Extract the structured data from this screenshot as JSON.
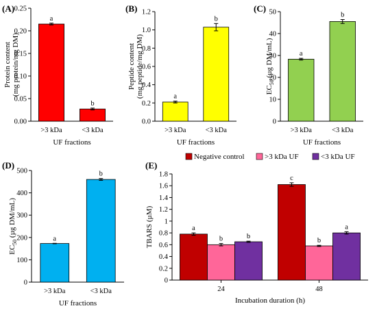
{
  "colors": {
    "red": "#ff0000",
    "yellow": "#ffff00",
    "green": "#92d050",
    "blue": "#00b0f0",
    "dark_red": "#c00000",
    "pink": "#ff6699",
    "purple": "#7030a0",
    "axis": "#000000"
  },
  "chart_data": [
    {
      "panel": "(A)",
      "type": "bar",
      "categories": [
        ">3 kDa",
        "<3 kDa"
      ],
      "values": [
        0.215,
        0.027
      ],
      "errors": [
        0.002,
        0.002
      ],
      "labels": [
        "a",
        "b"
      ],
      "ylabel_lines": [
        "Protein content",
        "(mg protein/mg DM)"
      ],
      "xlabel": "UF fractions",
      "ylim": [
        0,
        0.25
      ],
      "yticks": [
        0,
        0.05,
        0.1,
        0.15,
        0.2,
        0.25
      ],
      "ytick_labels": [
        "0.00",
        "0.05",
        "0.10",
        "0.15",
        "0.20",
        "0.25"
      ],
      "color": "#ff0000",
      "grid": false
    },
    {
      "panel": "(B)",
      "type": "bar",
      "categories": [
        ">3 kDa",
        "<3 kDa"
      ],
      "values": [
        0.21,
        1.03
      ],
      "errors": [
        0.01,
        0.04
      ],
      "labels": [
        "a",
        "b"
      ],
      "ylabel_lines": [
        "Peptide content",
        "(mg peptide/mg DM)"
      ],
      "xlabel": "UF fractions",
      "ylim": [
        0,
        1.2
      ],
      "yticks": [
        0,
        0.2,
        0.4,
        0.6,
        0.8,
        1.0,
        1.2
      ],
      "ytick_labels": [
        "0.0",
        "0.2",
        "0.4",
        "0.6",
        "0.8",
        "1.0",
        "1.2"
      ],
      "color": "#ffff00",
      "grid": false
    },
    {
      "panel": "(C)",
      "type": "bar",
      "categories": [
        ">3 kDa",
        "<3 kDa"
      ],
      "values": [
        28.3,
        45.5
      ],
      "errors": [
        0.4,
        0.9
      ],
      "labels": [
        "a",
        "b"
      ],
      "ylabel": "EC50 (µg DM/mL)",
      "ylabel_main": "EC",
      "ylabel_sub": "50",
      "ylabel_rest": " (µg DM/mL)",
      "xlabel": "UF fractions",
      "ylim": [
        0,
        50
      ],
      "yticks": [
        0,
        10,
        20,
        30,
        40,
        50
      ],
      "ytick_labels": [
        "0",
        "10",
        "20",
        "30",
        "40",
        "50"
      ],
      "color": "#92d050",
      "grid": false
    },
    {
      "panel": "(D)",
      "type": "bar",
      "categories": [
        ">3 kDa",
        "<3 kDa"
      ],
      "values": [
        173,
        460
      ],
      "errors": [
        1,
        4
      ],
      "labels": [
        "a",
        "b"
      ],
      "ylabel": "EC50 (µg DM/mL)",
      "ylabel_main": "EC",
      "ylabel_sub": "50",
      "ylabel_rest": " (µg DM/mL)",
      "xlabel": "UF fractions",
      "ylim": [
        0,
        500
      ],
      "yticks": [
        0,
        100,
        200,
        300,
        400,
        500
      ],
      "ytick_labels": [
        "0",
        "100",
        "200",
        "300",
        "400",
        "500"
      ],
      "color": "#00b0f0",
      "grid": false
    },
    {
      "panel": "(E)",
      "type": "bar",
      "categories": [
        "24",
        "48"
      ],
      "series": [
        {
          "name": "Negative control",
          "values": [
            0.78,
            1.62
          ],
          "errors": [
            0.02,
            0.03
          ],
          "labels": [
            "a",
            "c"
          ],
          "color": "#c00000"
        },
        {
          "name": ">3 kDa UF",
          "values": [
            0.6,
            0.58
          ],
          "errors": [
            0.02,
            0.01
          ],
          "labels": [
            "b",
            "b"
          ],
          "color": "#ff6699"
        },
        {
          "name": "<3 kDa UF",
          "values": [
            0.65,
            0.8
          ],
          "errors": [
            0.01,
            0.02
          ],
          "labels": [
            "b",
            "a"
          ],
          "color": "#7030a0"
        }
      ],
      "ylabel": "TBARS (µM)",
      "xlabel": "Incubation duration (h)",
      "ylim": [
        0,
        1.8
      ],
      "yticks": [
        0,
        0.2,
        0.4,
        0.6,
        0.8,
        1.0,
        1.2,
        1.4,
        1.6,
        1.8
      ],
      "ytick_labels": [
        "0",
        "0.2",
        "0.4",
        "0.6",
        "0.8",
        "1",
        "1.2",
        "1.4",
        "1.6",
        "1.8"
      ],
      "legend_position": "top",
      "grid": false
    }
  ]
}
